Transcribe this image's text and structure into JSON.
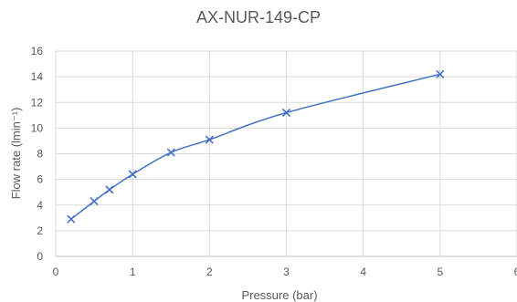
{
  "chart_data": {
    "type": "scatter",
    "title": "AX-NUR-149-CP",
    "xlabel": "Pressure (bar)",
    "ylabel": "Flow rate (lmin⁻¹)",
    "xlim": [
      0,
      6
    ],
    "ylim": [
      0,
      16
    ],
    "x_ticks": [
      0,
      1,
      2,
      3,
      4,
      5,
      6
    ],
    "y_ticks": [
      0,
      2,
      4,
      6,
      8,
      10,
      12,
      14,
      16
    ],
    "grid": true,
    "legend": "none",
    "marker": "x",
    "line": "smooth",
    "color": "#4472C4",
    "series": [
      {
        "x": [
          0.2,
          0.5,
          0.7,
          1,
          1.5,
          2,
          3,
          5
        ],
        "y": [
          2.9,
          4.3,
          5.2,
          6.4,
          8.1,
          9.1,
          11.2,
          14.2
        ]
      }
    ]
  }
}
